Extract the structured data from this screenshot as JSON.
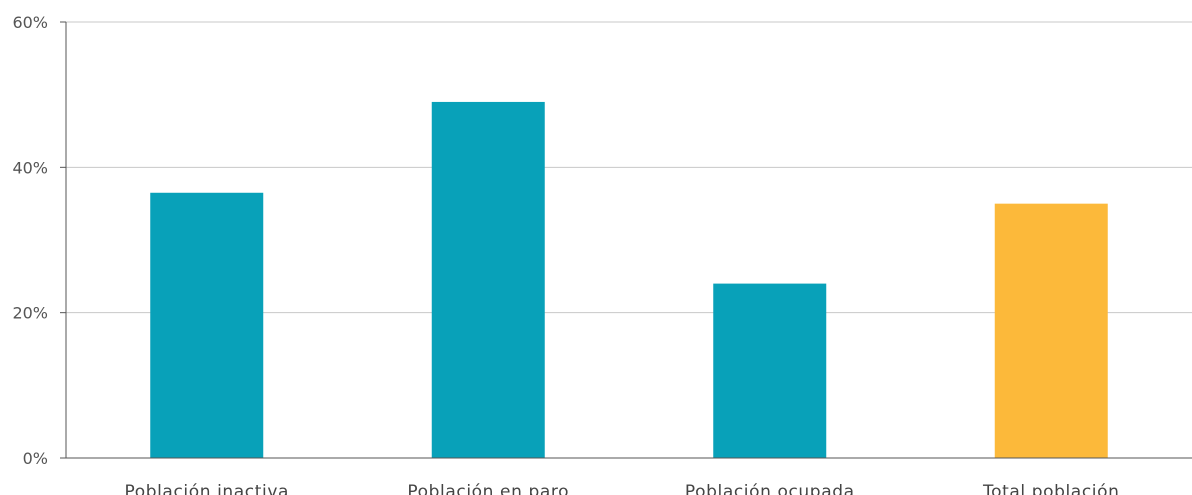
{
  "chart_data": {
    "type": "bar",
    "title": "",
    "xlabel": "",
    "ylabel": "",
    "categories": [
      "Población inactiva",
      "Población en paro",
      "Población ocupada",
      "Total población"
    ],
    "values": [
      36.5,
      49,
      24,
      35
    ],
    "bar_colors": [
      "#08a1b9",
      "#08a1b9",
      "#08a1b9",
      "#fcb93a"
    ],
    "ylim": [
      0,
      60
    ],
    "yticks": [
      0,
      20,
      40,
      60
    ],
    "ytick_labels": [
      "0%",
      "20%",
      "40%",
      "60%"
    ],
    "grid": true,
    "gridline_color": "#c8c8c8",
    "axis_color": "#555555"
  }
}
